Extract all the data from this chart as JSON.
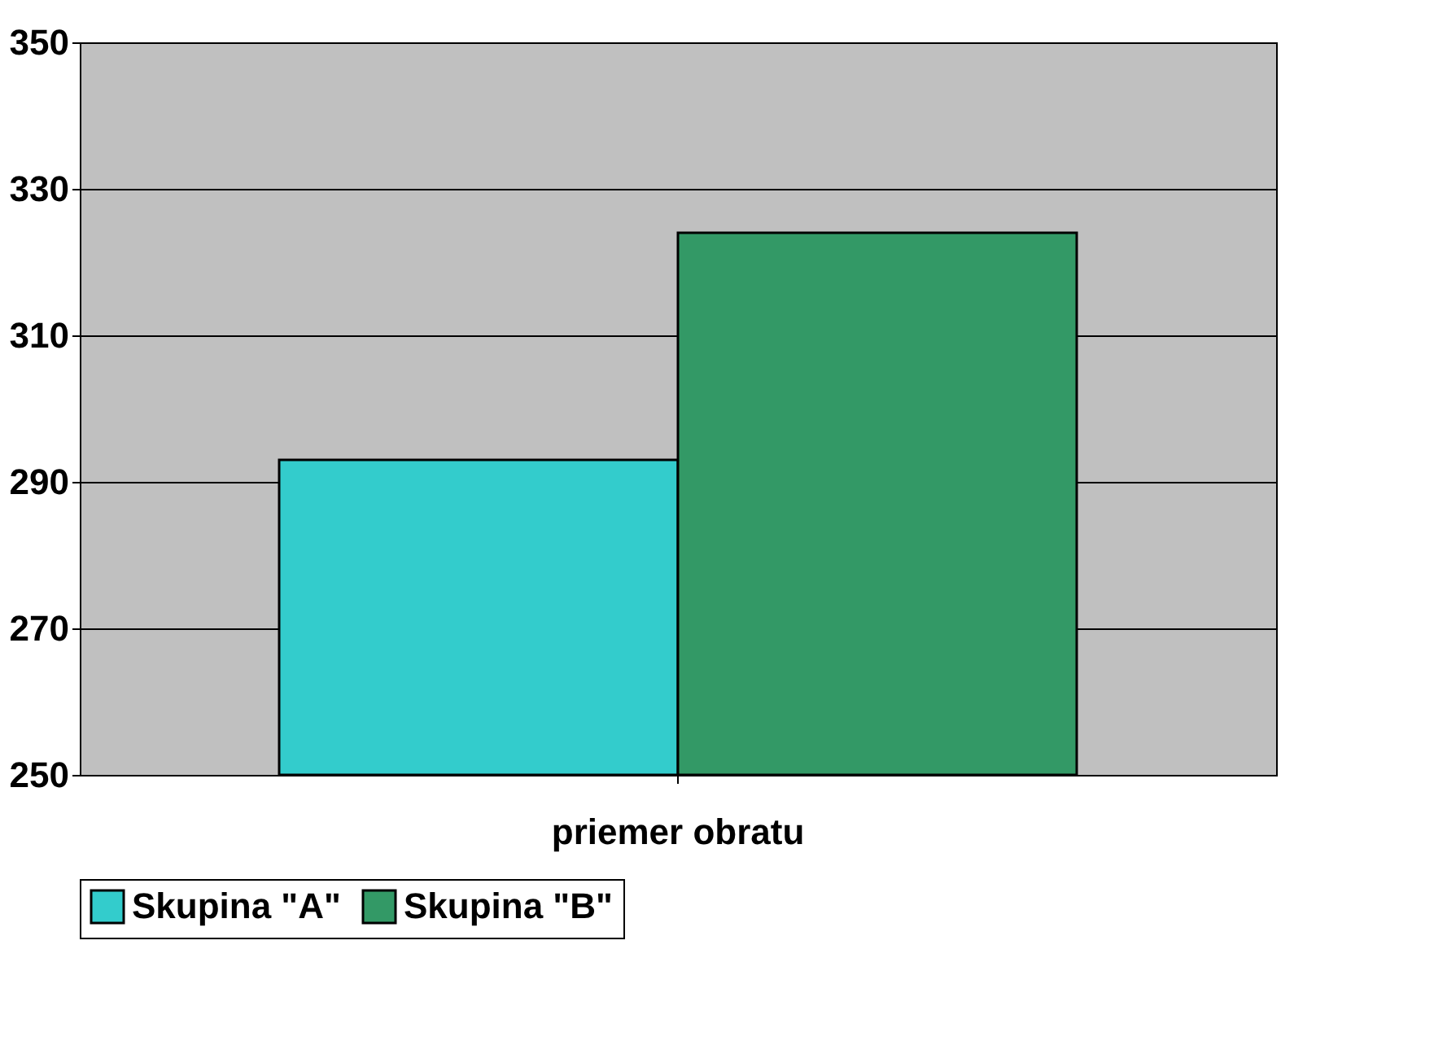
{
  "chart_data": {
    "type": "bar",
    "categories": [
      "priemer  obratu"
    ],
    "series": [
      {
        "name": "Skupina \"A\"",
        "color": "#33cccc",
        "values": [
          293
        ]
      },
      {
        "name": "Skupina \"B\"",
        "color": "#339966",
        "values": [
          324
        ]
      }
    ],
    "ylim": [
      250,
      350
    ],
    "yticks": [
      250,
      270,
      290,
      310,
      330,
      350
    ],
    "grid": "y",
    "legend": "bottom"
  }
}
